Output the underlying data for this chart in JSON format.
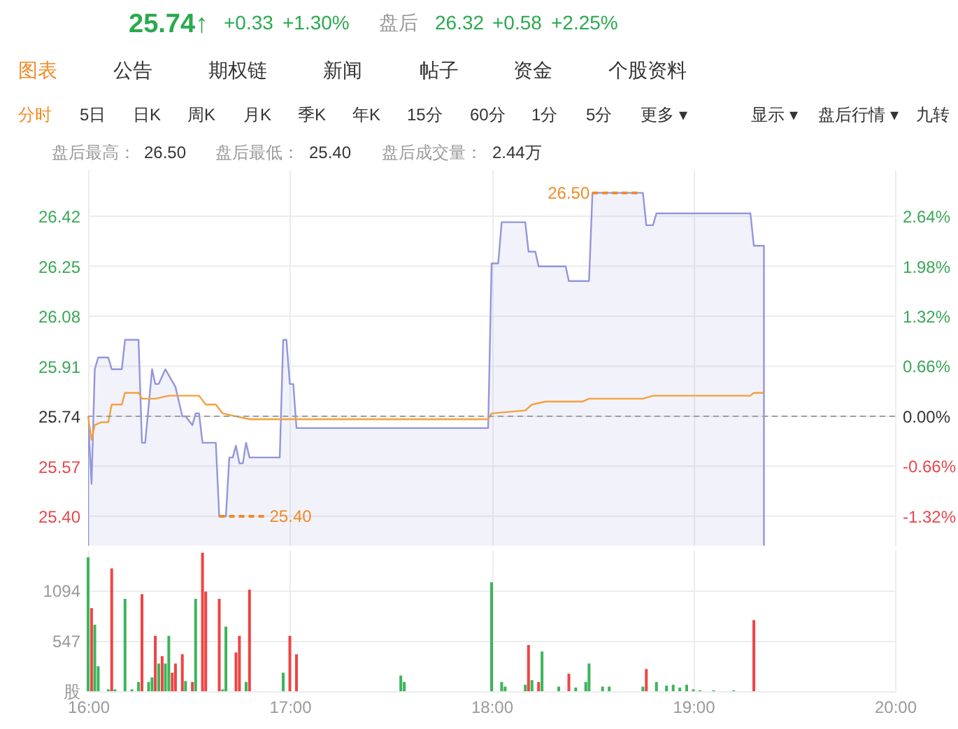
{
  "chart_data": [
    {
      "type": "other",
      "annotations": [
        "25.74↑",
        "+0.33",
        "+1.30%",
        "盘后",
        "26.32",
        "+0.58",
        "+2.25%",
        "图表",
        "公告",
        "期权链",
        "新闻",
        "帖子",
        "资金",
        "个股资料",
        "分时",
        "5日",
        "日K",
        "周K",
        "月K",
        "季K",
        "年K",
        "15分",
        "60分",
        "1分",
        "5分",
        "更多 ▾",
        "显示 ▾",
        "盘后行情 ▾",
        "九转",
        "盘后最高：",
        "26.50",
        "盘后最低：",
        "25.40",
        "盘后成交量：",
        "2.44万"
      ]
    },
    {
      "type": "area",
      "tick_labels": "y",
      "grid": true,
      "xlim": [
        16,
        20
      ],
      "xticks": [
        16,
        17,
        18,
        19,
        20
      ],
      "ylim": [
        25.3,
        26.58
      ],
      "yticks": [
        {
          "value": 25.4,
          "label": "25.40"
        },
        {
          "value": 25.57,
          "label": "25.57"
        },
        {
          "value": 25.74,
          "label": "25.74"
        },
        {
          "value": 25.91,
          "label": "25.91"
        },
        {
          "value": 26.08,
          "label": "26.08"
        },
        {
          "value": 26.25,
          "label": "26.25"
        },
        {
          "value": 26.42,
          "label": "26.42"
        }
      ],
      "y2lim": [
        -1.71,
        3.26
      ],
      "y2ticks": [
        {
          "value": -1.32,
          "label": "-1.32%"
        },
        {
          "value": -0.66,
          "label": "-0.66%"
        },
        {
          "value": 0,
          "label": "0.00%"
        },
        {
          "value": 0.66,
          "label": "0.66%"
        },
        {
          "value": 1.32,
          "label": "1.32%"
        },
        {
          "value": 1.98,
          "label": "1.98%"
        },
        {
          "value": 2.64,
          "label": "2.64%"
        }
      ],
      "ref_lines": [
        {
          "axis": "y",
          "value": 25.74,
          "color": "#9e9e9e",
          "line_style": "dashed"
        }
      ],
      "annotations": [
        {
          "text": "26.50",
          "x": 18.5,
          "y": 26.5
        },
        {
          "text": "25.40",
          "x": 16.65,
          "y": 25.4
        }
      ],
      "series": [
        {
          "type": "area",
          "color": "#9296dc",
          "x": [
            16.0,
            16.017,
            16.033,
            16.05,
            16.1,
            16.117,
            16.167,
            16.183,
            16.25,
            16.267,
            16.283,
            16.317,
            16.333,
            16.35,
            16.383,
            16.433,
            16.467,
            16.483,
            16.517,
            16.533,
            16.55,
            16.567,
            16.633,
            16.65,
            16.683,
            16.7,
            16.717,
            16.733,
            16.75,
            16.767,
            16.783,
            16.8,
            16.95,
            16.967,
            16.983,
            17.0,
            17.017,
            17.033,
            17.983,
            18.0,
            18.033,
            18.05,
            18.167,
            18.183,
            18.217,
            18.233,
            18.367,
            18.383,
            18.483,
            18.5,
            18.75,
            18.767,
            18.8,
            18.817,
            19.283,
            19.3,
            19.35
          ],
          "values": [
            25.74,
            25.51,
            25.9,
            25.94,
            25.94,
            25.9,
            25.9,
            26.0,
            26.0,
            25.65,
            25.65,
            25.9,
            25.85,
            25.85,
            25.9,
            25.84,
            25.74,
            25.74,
            25.71,
            25.75,
            25.75,
            25.65,
            25.65,
            25.4,
            25.4,
            25.6,
            25.6,
            25.64,
            25.58,
            25.58,
            25.65,
            25.6,
            25.6,
            26.0,
            26.0,
            25.85,
            25.85,
            25.7,
            25.7,
            26.26,
            26.26,
            26.4,
            26.4,
            26.3,
            26.3,
            26.25,
            26.25,
            26.2,
            26.2,
            26.5,
            26.5,
            26.39,
            26.39,
            26.43,
            26.43,
            26.32,
            26.32
          ]
        },
        {
          "type": "line",
          "color": "#f5a03c",
          "x": [
            16.0,
            16.017,
            16.033,
            16.067,
            16.1,
            16.117,
            16.167,
            16.183,
            16.25,
            16.267,
            16.333,
            16.4,
            16.55,
            16.583,
            16.633,
            16.667,
            16.733,
            16.8,
            17.983,
            18.0,
            18.167,
            18.2,
            18.267,
            18.45,
            18.483,
            18.75,
            18.8,
            19.283,
            19.3,
            19.35
          ],
          "values": [
            25.74,
            25.66,
            25.71,
            25.72,
            25.72,
            25.78,
            25.78,
            25.82,
            25.82,
            25.8,
            25.8,
            25.81,
            25.81,
            25.78,
            25.78,
            25.75,
            25.74,
            25.73,
            25.73,
            25.75,
            25.76,
            25.78,
            25.79,
            25.79,
            25.8,
            25.8,
            25.81,
            25.81,
            25.82,
            25.82
          ]
        }
      ]
    },
    {
      "type": "bar",
      "grid": true,
      "xlim": [
        16,
        20
      ],
      "xticks": [
        {
          "value": 16,
          "label": "16:00"
        },
        {
          "value": 17,
          "label": "17:00"
        },
        {
          "value": 18,
          "label": "18:00"
        },
        {
          "value": 19,
          "label": "19:00"
        },
        {
          "value": 20,
          "label": "20:00"
        }
      ],
      "ylim": [
        0,
        1530
      ],
      "yticks": [
        {
          "value": 0,
          "label": "股"
        },
        547,
        1094
      ],
      "x": [
        16.0,
        16.017,
        16.033,
        16.05,
        16.1,
        16.117,
        16.133,
        16.183,
        16.217,
        16.25,
        16.267,
        16.3,
        16.317,
        16.333,
        16.35,
        16.367,
        16.383,
        16.4,
        16.417,
        16.433,
        16.467,
        16.483,
        16.517,
        16.533,
        16.567,
        16.583,
        16.65,
        16.667,
        16.683,
        16.733,
        16.75,
        16.783,
        16.8,
        16.967,
        17.0,
        17.033,
        17.55,
        17.567,
        18.0,
        18.05,
        18.067,
        18.167,
        18.183,
        18.2,
        18.233,
        18.25,
        18.333,
        18.383,
        18.417,
        18.467,
        18.483,
        18.55,
        18.583,
        18.75,
        18.767,
        18.817,
        18.867,
        18.9,
        18.933,
        18.967,
        19.0,
        19.033,
        19.1,
        19.2,
        19.3
      ],
      "values": [
        1450,
        900,
        720,
        270,
        20,
        1330,
        20,
        1000,
        20,
        100,
        1050,
        100,
        150,
        600,
        300,
        380,
        300,
        600,
        200,
        300,
        400,
        110,
        100,
        1000,
        1500,
        1080,
        1000,
        20,
        700,
        420,
        600,
        100,
        1100,
        200,
        600,
        400,
        170,
        100,
        1180,
        100,
        50,
        70,
        500,
        120,
        100,
        430,
        50,
        190,
        40,
        100,
        300,
        50,
        50,
        50,
        240,
        100,
        60,
        70,
        40,
        70,
        20,
        10,
        10,
        10,
        770
      ],
      "colors": [
        "#3cb55a",
        "#ef4444",
        "#3cb55a",
        "#3cb55a",
        "#3cb55a",
        "#ef4444",
        "#3cb55a",
        "#3cb55a",
        "#3cb55a",
        "#3cb55a",
        "#ef4444",
        "#3cb55a",
        "#3cb55a",
        "#ef4444",
        "#3cb55a",
        "#ef4444",
        "#3cb55a",
        "#3cb55a",
        "#ef4444",
        "#ef4444",
        "#ef4444",
        "#3cb55a",
        "#ef4444",
        "#3cb55a",
        "#ef4444",
        "#ef4444",
        "#ef4444",
        "#3cb55a",
        "#3cb55a",
        "#ef4444",
        "#ef4444",
        "#3cb55a",
        "#ef4444",
        "#3cb55a",
        "#ef4444",
        "#ef4444",
        "#3cb55a",
        "#3cb55a",
        "#3cb55a",
        "#3cb55a",
        "#3cb55a",
        "#3cb55a",
        "#ef4444",
        "#3cb55a",
        "#ef4444",
        "#3cb55a",
        "#3cb55a",
        "#ef4444",
        "#3cb55a",
        "#3cb55a",
        "#3cb55a",
        "#3cb55a",
        "#3cb55a",
        "#3cb55a",
        "#ef4444",
        "#3cb55a",
        "#3cb55a",
        "#3cb55a",
        "#3cb55a",
        "#3cb55a",
        "#3cb55a",
        "#3cb55a",
        "#3cb55a",
        "#3cb55a",
        "#ef4444"
      ]
    }
  ]
}
